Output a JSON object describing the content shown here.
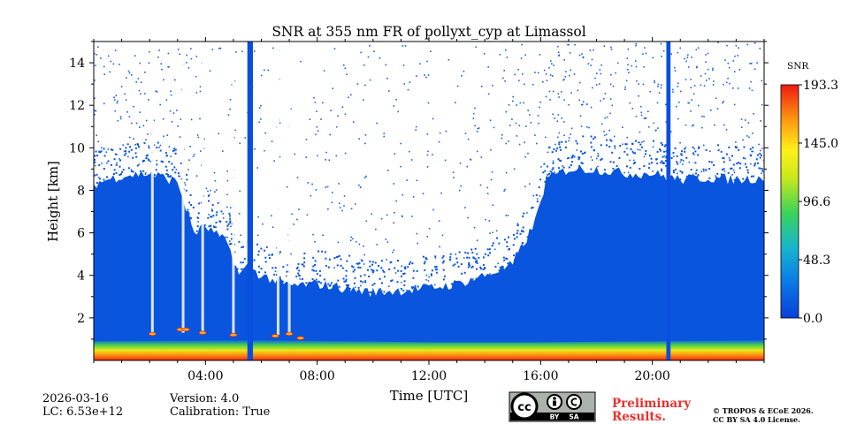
{
  "chart_data": {
    "type": "heatmap",
    "title": "SNR at 355 nm FR of pollyxt_cyp at Limassol",
    "xlabel": "Time [UTC]",
    "ylabel": "Height [km]",
    "xlim": [
      0,
      24
    ],
    "ylim": [
      0,
      15
    ],
    "x_ticks": [
      {
        "value": 4,
        "label": "04:00"
      },
      {
        "value": 8,
        "label": "08:00"
      },
      {
        "value": 12,
        "label": "12:00"
      },
      {
        "value": 16,
        "label": "16:00"
      },
      {
        "value": 20,
        "label": "20:00"
      }
    ],
    "y_ticks": [
      {
        "value": 2,
        "label": "2"
      },
      {
        "value": 4,
        "label": "4"
      },
      {
        "value": 6,
        "label": "6"
      },
      {
        "value": 8,
        "label": "8"
      },
      {
        "value": 10,
        "label": "10"
      },
      {
        "value": 12,
        "label": "12"
      },
      {
        "value": 14,
        "label": "14"
      }
    ],
    "colorbar": {
      "label": "SNR",
      "min": 0.0,
      "max": 193.3,
      "ticks": [
        {
          "value": 0.0,
          "label": "0.0"
        },
        {
          "value": 48.3,
          "label": "48.3"
        },
        {
          "value": 96.6,
          "label": "96.6"
        },
        {
          "value": 145.0,
          "label": "145.0"
        },
        {
          "value": 193.3,
          "label": "193.3"
        }
      ]
    },
    "signal_top_km": [
      {
        "time": 0.0,
        "height": 8.3
      },
      {
        "time": 1.0,
        "height": 8.7
      },
      {
        "time": 2.0,
        "height": 8.8
      },
      {
        "time": 3.0,
        "height": 8.4
      },
      {
        "time": 3.6,
        "height": 6.0
      },
      {
        "time": 4.0,
        "height": 6.3
      },
      {
        "time": 4.8,
        "height": 5.5
      },
      {
        "time": 5.2,
        "height": 4.0
      },
      {
        "time": 5.5,
        "height": 4.4
      },
      {
        "time": 6.0,
        "height": 4.0
      },
      {
        "time": 7.0,
        "height": 3.5
      },
      {
        "time": 8.0,
        "height": 3.6
      },
      {
        "time": 9.0,
        "height": 3.4
      },
      {
        "time": 10.0,
        "height": 3.2
      },
      {
        "time": 11.0,
        "height": 3.3
      },
      {
        "time": 12.0,
        "height": 3.4
      },
      {
        "time": 13.0,
        "height": 3.6
      },
      {
        "time": 14.0,
        "height": 4.0
      },
      {
        "time": 15.0,
        "height": 4.5
      },
      {
        "time": 15.8,
        "height": 6.5
      },
      {
        "time": 16.2,
        "height": 8.5
      },
      {
        "time": 17.0,
        "height": 9.0
      },
      {
        "time": 18.0,
        "height": 9.0
      },
      {
        "time": 19.0,
        "height": 8.8
      },
      {
        "time": 20.0,
        "height": 8.8
      },
      {
        "time": 21.0,
        "height": 8.5
      },
      {
        "time": 22.0,
        "height": 8.6
      },
      {
        "time": 23.0,
        "height": 8.5
      },
      {
        "time": 24.0,
        "height": 8.6
      }
    ],
    "boundary_layer_km": [
      {
        "time": 0.0,
        "height": 0.9
      },
      {
        "time": 6.0,
        "height": 0.95
      },
      {
        "time": 12.0,
        "height": 0.85
      },
      {
        "time": 16.0,
        "height": 0.85
      },
      {
        "time": 20.0,
        "height": 0.9
      },
      {
        "time": 24.0,
        "height": 0.95
      }
    ],
    "clear_gaps": [
      {
        "time": 2.1,
        "from_km": 1.2,
        "to_km": 15
      },
      {
        "time": 3.2,
        "from_km": 1.3,
        "to_km": 15
      },
      {
        "time": 3.9,
        "from_km": 1.3,
        "to_km": 15
      },
      {
        "time": 5.0,
        "from_km": 1.2,
        "to_km": 15
      },
      {
        "time": 6.6,
        "from_km": 1.2,
        "to_km": 15
      },
      {
        "time": 7.0,
        "from_km": 1.3,
        "to_km": 15
      }
    ],
    "cloud_spots": [
      {
        "time": 2.1,
        "height": 1.25
      },
      {
        "time": 3.1,
        "height": 1.45
      },
      {
        "time": 3.3,
        "height": 1.45
      },
      {
        "time": 3.9,
        "height": 1.3
      },
      {
        "time": 5.0,
        "height": 1.2
      },
      {
        "time": 6.5,
        "height": 1.15
      },
      {
        "time": 7.0,
        "height": 1.25
      },
      {
        "time": 7.4,
        "height": 1.05
      }
    ],
    "bad_profiles": [
      {
        "time_start": 5.5,
        "time_end": 5.7
      },
      {
        "time_start": 20.5,
        "time_end": 20.65
      }
    ]
  },
  "footer": {
    "date": "2026-03-16",
    "lc": "LC: 6.53e+12",
    "version": "Version: 4.0",
    "calibration": "Calibration: True",
    "preliminary_line1": "Preliminary",
    "preliminary_line2": "Results.",
    "copyright_line1": "© TROPOS & ECoE 2026.",
    "copyright_line2": "CC BY SA 4.0 License.",
    "license_badge": {
      "cc": "cc",
      "by": "BY",
      "sa": "SA"
    }
  }
}
